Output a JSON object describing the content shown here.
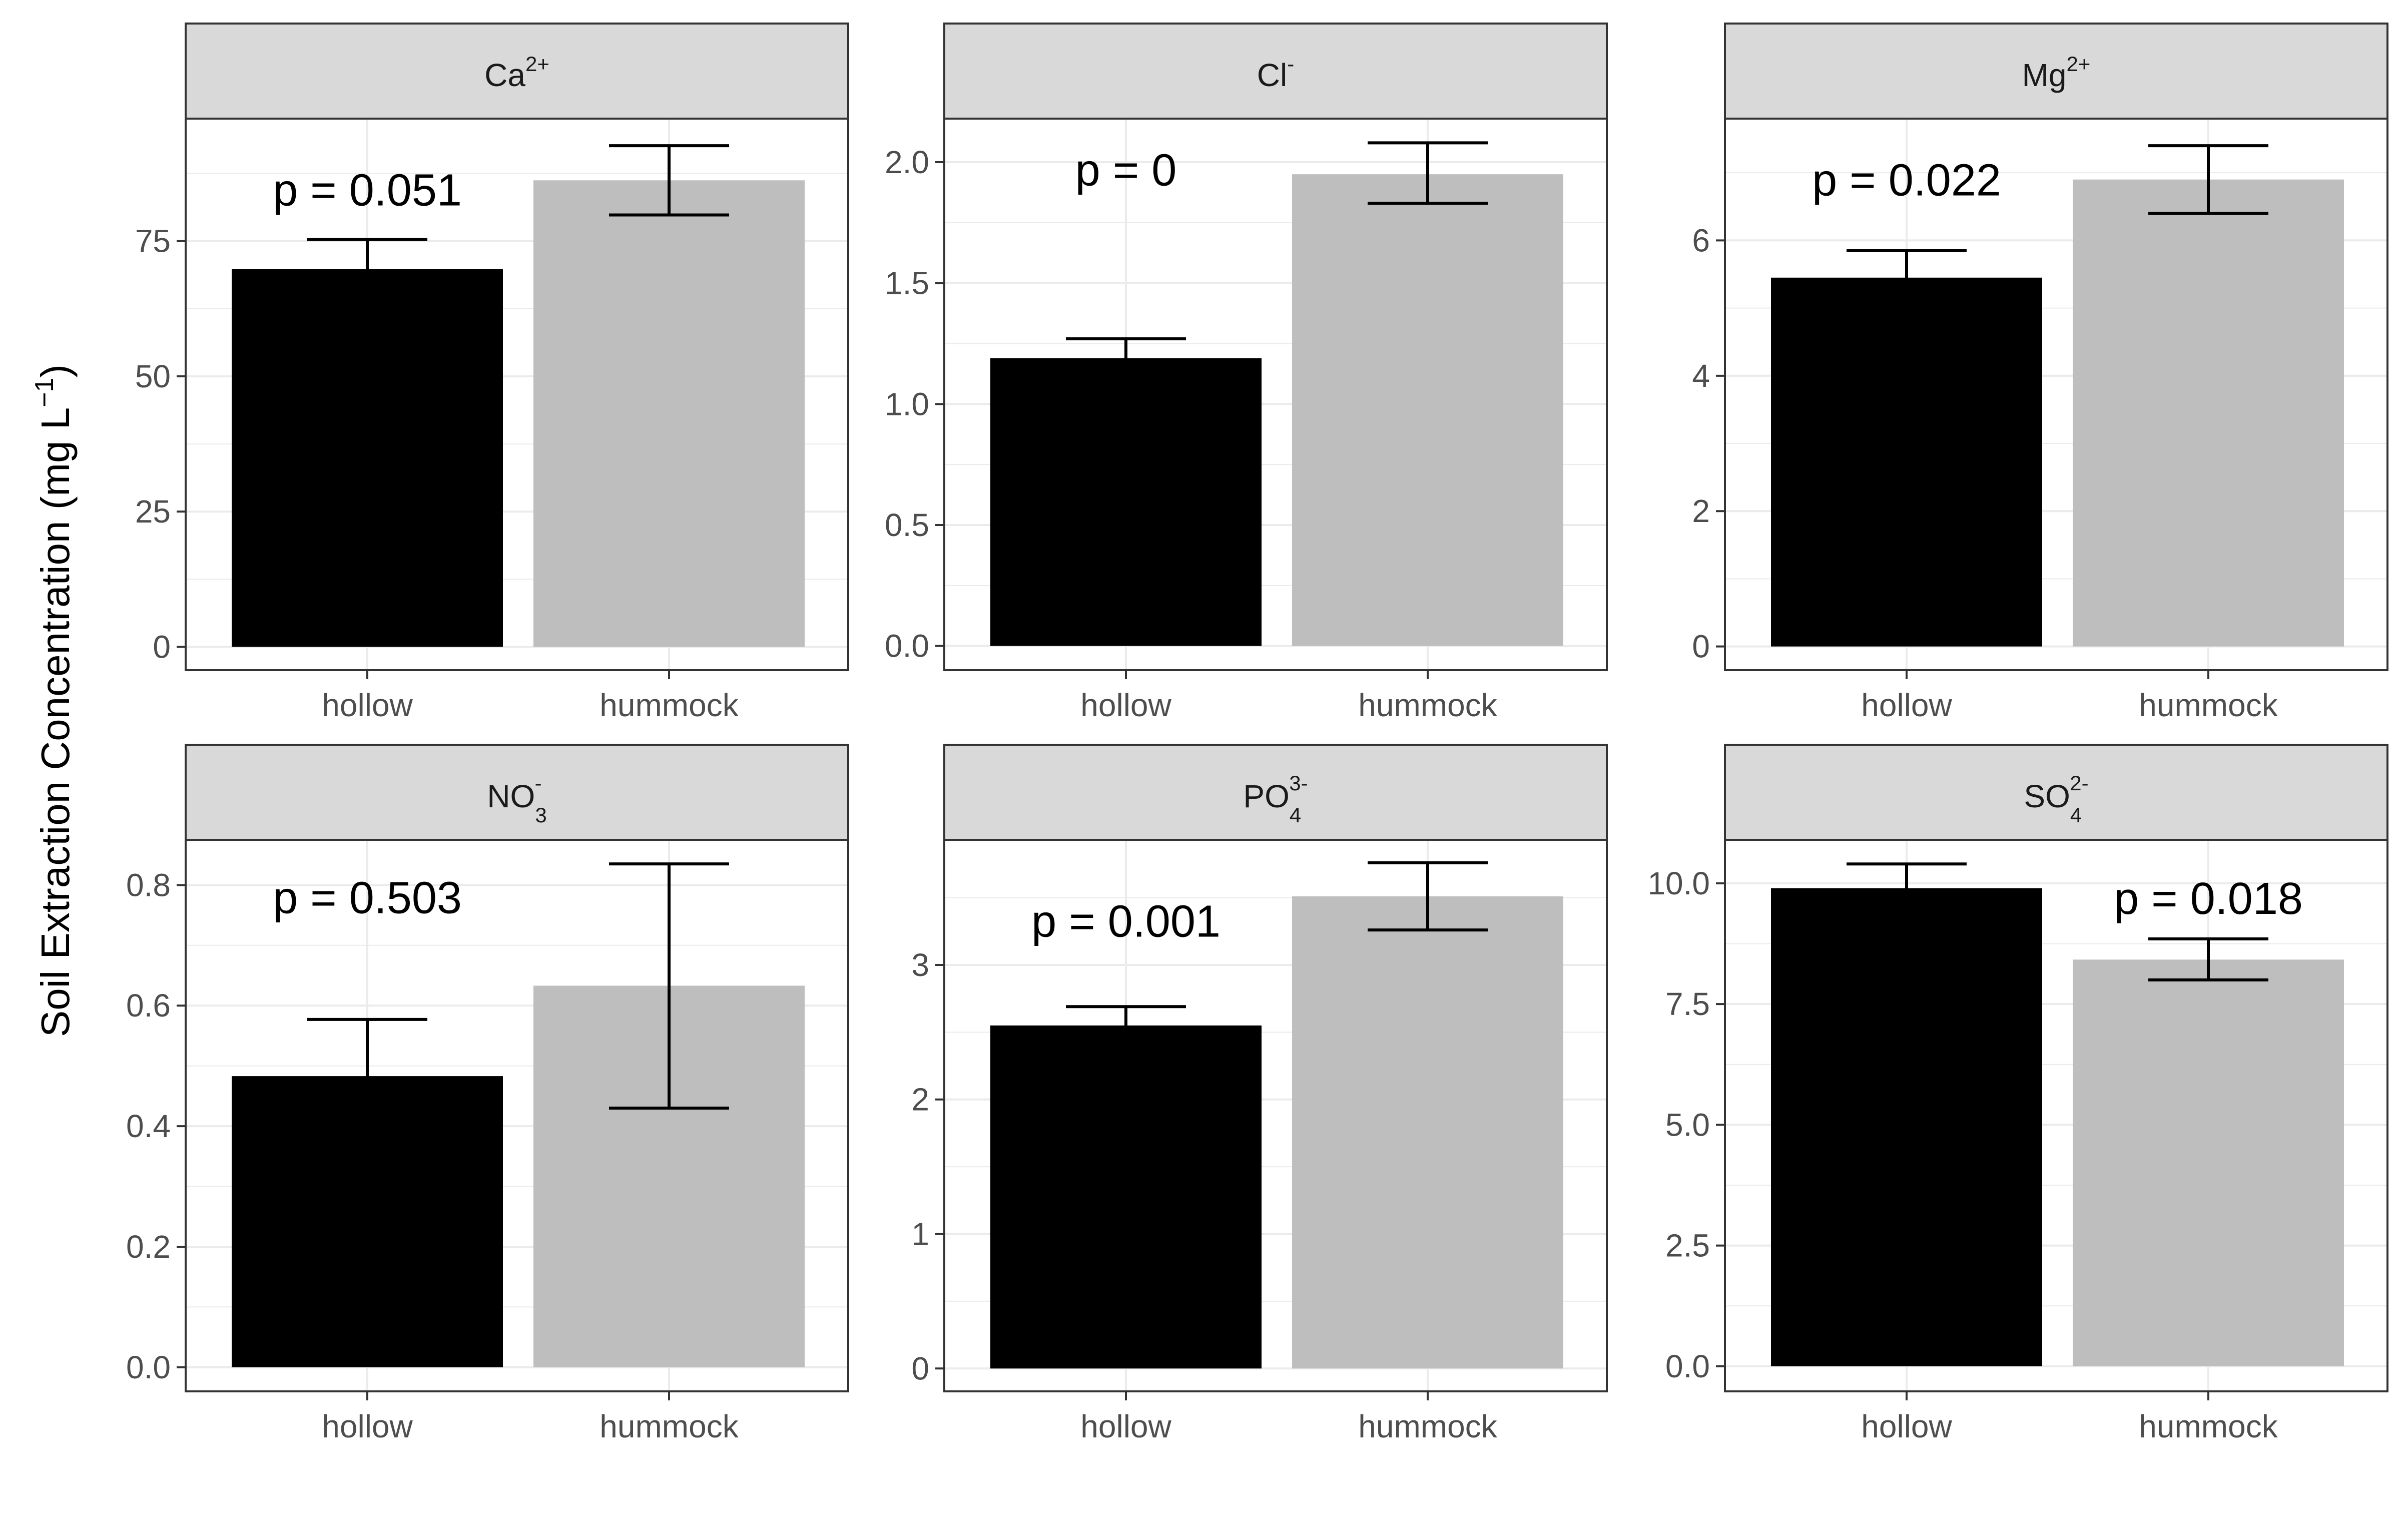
{
  "chart_data": {
    "type": "bar",
    "ylabel": "Soil Extraction Concentration (mg L",
    "ylabel_unit_sup": "−1",
    "ylabel_close": ")",
    "categories": [
      "hollow",
      "hummock"
    ],
    "colors": {
      "hollow": "#000000",
      "hummock": "#bebebe",
      "grid": "#ebebeb",
      "strip_fill": "#d9d9d9",
      "panel_border": "#333333"
    },
    "grid": true,
    "panels": [
      {
        "id": "ca",
        "ion": "Ca",
        "sup": "2+",
        "sub": "",
        "p_label": "p = 0.051",
        "p_pos": "above-hollow",
        "p_y": 84.5,
        "values": [
          69.8,
          86.2
        ],
        "error_low": [
          64.3,
          79.8
        ],
        "error_high": [
          75.3,
          92.6
        ],
        "ylim": [
          -4.3,
          97.6
        ],
        "yticks": [
          0,
          25,
          50,
          75
        ],
        "ytick_labels": [
          "0",
          "25",
          "50",
          "75"
        ],
        "minor": [
          12.5,
          37.5,
          62.5,
          87.5
        ]
      },
      {
        "id": "cl",
        "ion": "Cl",
        "sup": "-",
        "sub": "",
        "p_label": "p = 0",
        "p_pos": "above-hollow",
        "p_y": 1.97,
        "values": [
          1.19,
          1.95
        ],
        "error_low": [
          1.1,
          1.83
        ],
        "error_high": [
          1.27,
          2.08
        ],
        "ylim": [
          -0.1,
          2.18
        ],
        "yticks": [
          0.0,
          0.5,
          1.0,
          1.5,
          2.0
        ],
        "ytick_labels": [
          "0.0",
          "0.5",
          "1.0",
          "1.5",
          "2.0"
        ],
        "minor": [
          0.25,
          0.75,
          1.25,
          1.75
        ]
      },
      {
        "id": "mg",
        "ion": "Mg",
        "sup": "2+",
        "sub": "",
        "p_label": "p = 0.022",
        "p_pos": "above-hollow",
        "p_y": 6.9,
        "values": [
          5.45,
          6.9
        ],
        "error_low": [
          5.05,
          6.4
        ],
        "error_high": [
          5.85,
          7.4
        ],
        "ylim": [
          -0.35,
          7.8
        ],
        "yticks": [
          0,
          2,
          4,
          6
        ],
        "ytick_labels": [
          "0",
          "2",
          "4",
          "6"
        ],
        "minor": [
          1,
          3,
          5,
          7
        ]
      },
      {
        "id": "no3",
        "ion": "NO",
        "sup": "-",
        "sub": "3",
        "p_label": "p = 0.503",
        "p_pos": "above-hollow",
        "p_y": 0.78,
        "values": [
          0.483,
          0.633
        ],
        "error_low": [
          0.39,
          0.43
        ],
        "error_high": [
          0.577,
          0.835
        ],
        "ylim": [
          -0.04,
          0.875
        ],
        "yticks": [
          0.0,
          0.2,
          0.4,
          0.6,
          0.8
        ],
        "ytick_labels": [
          "0.0",
          "0.2",
          "0.4",
          "0.6",
          "0.8"
        ],
        "minor": [
          0.1,
          0.3,
          0.5,
          0.7
        ]
      },
      {
        "id": "po4",
        "ion": "PO",
        "sup": "3-",
        "sub": "4",
        "p_label": "p = 0.001",
        "p_pos": "above-hollow",
        "p_y": 3.33,
        "values": [
          2.55,
          3.51
        ],
        "error_low": [
          2.41,
          3.26
        ],
        "error_high": [
          2.69,
          3.76
        ],
        "ylim": [
          -0.17,
          3.93
        ],
        "yticks": [
          0,
          1,
          2,
          3
        ],
        "ytick_labels": [
          "0",
          "1",
          "2",
          "3"
        ],
        "minor": [
          0.5,
          1.5,
          2.5,
          3.5
        ]
      },
      {
        "id": "so4",
        "ion": "SO",
        "sup": "2-",
        "sub": "4",
        "p_label": "p = 0.018",
        "p_pos": "above-hummock",
        "p_y": 9.7,
        "values": [
          9.9,
          8.42
        ],
        "error_low": [
          9.45,
          8.0
        ],
        "error_high": [
          10.4,
          8.85
        ],
        "ylim": [
          -0.52,
          10.9
        ],
        "yticks": [
          0.0,
          2.5,
          5.0,
          7.5,
          10.0
        ],
        "ytick_labels": [
          "0.0",
          "2.5",
          "5.0",
          "7.5",
          "10.0"
        ],
        "minor": [
          1.25,
          3.75,
          6.25,
          8.75
        ]
      }
    ]
  }
}
